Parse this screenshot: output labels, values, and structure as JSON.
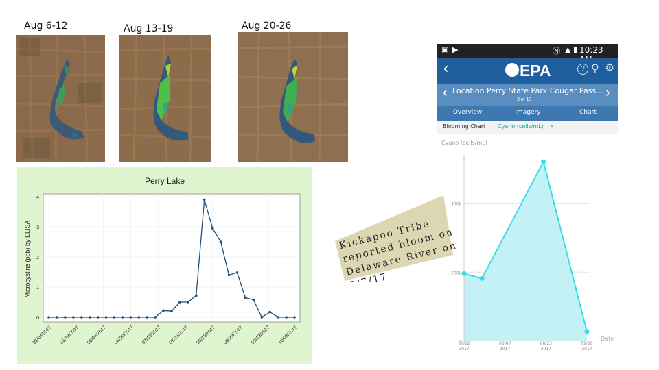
{
  "weeks": [
    "Aug 6-12",
    "Aug 13-19",
    "Aug 20-26"
  ],
  "annotation": {
    "lines": [
      "Kickapoo Tribe",
      "reported bloom on",
      "Delaware River on",
      "8/7/17"
    ]
  },
  "phone": {
    "status_time": "10:23 AM",
    "brand": "EPA",
    "location": "Location Perry State Park Cougar Pass...",
    "page": "3 of 13",
    "tabs": [
      "Overview",
      "Imagery",
      "Chart"
    ],
    "active_tab": "Chart",
    "blooming_label": "Blooming Chart",
    "metric_select": "Cyano (cells/mL)",
    "colors": {
      "header": "#1f5f9e",
      "accent": "#16c0c0",
      "fill": "#bff0f4"
    }
  },
  "chart_data": [
    {
      "type": "line",
      "title": "Perry Lake",
      "xlabel": "",
      "ylabel": "Microcystins (ppb) by ELISA",
      "ylim": [
        0,
        4
      ],
      "yticks": [
        "0",
        "1",
        "2",
        "3",
        "4"
      ],
      "xtick_labels": [
        "05/04/2017",
        "05/18/2017",
        "06/04/2017",
        "06/20/2017",
        "07/10/2017",
        "07/25/2017",
        "08/15/2017",
        "08/29/2017",
        "09/19/2017",
        "10/03/2017"
      ],
      "grid": true,
      "series": [
        {
          "values": [
            0,
            0,
            0,
            0,
            0,
            0,
            0,
            0,
            0,
            0,
            0,
            0,
            0,
            0,
            0.22,
            0.2,
            0.5,
            0.5,
            0.72,
            3.9,
            2.95,
            2.5,
            1.4,
            1.48,
            0.65,
            0.58,
            0,
            0.17,
            0,
            0,
            0
          ]
        }
      ]
    },
    {
      "type": "area",
      "title": "",
      "ylabel": "Cyano (cells/mL)",
      "xlabel": "Date",
      "x": [
        "07/22 2017",
        "07/29 2017",
        "08/22 2017",
        "09/08 2017"
      ],
      "xtick_labels": [
        [
          "07/22",
          "2017"
        ],
        [
          "08/07",
          "2017"
        ],
        [
          "08/23",
          "2017"
        ],
        [
          "09/08",
          "2017"
        ]
      ],
      "ytick_labels": [
        "0",
        "200k",
        "400k"
      ],
      "ylim": [
        0,
        540000
      ],
      "grid": true,
      "series": [
        {
          "values": [
            196000,
            182000,
            520000,
            28000
          ]
        }
      ]
    }
  ]
}
